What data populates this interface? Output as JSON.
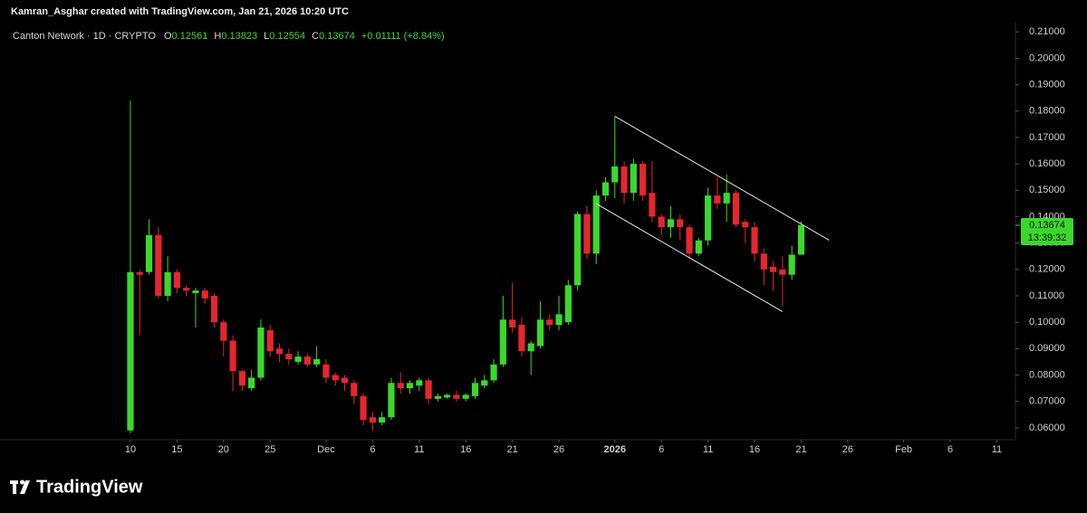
{
  "header": {
    "credit": "Kamran_Asghar created with TradingView.com, Jan 21, 2026 10:20 UTC",
    "symbol": "Canton Network · 1D · CRYPTO",
    "fields": [
      {
        "key": "O",
        "text": "0.12561"
      },
      {
        "key": "H",
        "text": "0.13823"
      },
      {
        "key": "L",
        "text": "0.12554"
      },
      {
        "key": "C",
        "text": "0.13674"
      }
    ],
    "change": "+0.01111 (+8.84%)"
  },
  "chart_data": {
    "type": "candlestick",
    "up_color": "#3bd82c",
    "down_color": "#e5262e",
    "x": [
      "2025-11-10",
      "2025-11-11",
      "2025-11-12",
      "2025-11-13",
      "2025-11-14",
      "2025-11-15",
      "2025-11-16",
      "2025-11-17",
      "2025-11-18",
      "2025-11-19",
      "2025-11-20",
      "2025-11-21",
      "2025-11-22",
      "2025-11-23",
      "2025-11-24",
      "2025-11-25",
      "2025-11-26",
      "2025-11-27",
      "2025-11-28",
      "2025-11-29",
      "2025-11-30",
      "2025-12-01",
      "2025-12-02",
      "2025-12-03",
      "2025-12-04",
      "2025-12-05",
      "2025-12-06",
      "2025-12-07",
      "2025-12-08",
      "2025-12-09",
      "2025-12-10",
      "2025-12-11",
      "2025-12-12",
      "2025-12-13",
      "2025-12-14",
      "2025-12-15",
      "2025-12-16",
      "2025-12-17",
      "2025-12-18",
      "2025-12-19",
      "2025-12-20",
      "2025-12-21",
      "2025-12-22",
      "2025-12-23",
      "2025-12-24",
      "2025-12-25",
      "2025-12-26",
      "2025-12-27",
      "2025-12-28",
      "2025-12-29",
      "2025-12-30",
      "2025-12-31",
      "2026-01-01",
      "2026-01-02",
      "2026-01-03",
      "2026-01-04",
      "2026-01-05",
      "2026-01-06",
      "2026-01-07",
      "2026-01-08",
      "2026-01-09",
      "2026-01-10",
      "2026-01-11",
      "2026-01-12",
      "2026-01-13",
      "2026-01-14",
      "2026-01-15",
      "2026-01-16",
      "2026-01-17",
      "2026-01-18",
      "2026-01-19",
      "2026-01-20",
      "2026-01-21"
    ],
    "open": [
      0.059,
      0.119,
      0.119,
      0.133,
      0.11,
      0.119,
      0.113,
      0.111,
      0.112,
      0.11,
      0.1,
      0.093,
      0.0815,
      0.075,
      0.079,
      0.097,
      0.09,
      0.088,
      0.085,
      0.087,
      0.084,
      0.084,
      0.08,
      0.079,
      0.077,
      0.072,
      0.064,
      0.062,
      0.064,
      0.077,
      0.075,
      0.076,
      0.078,
      0.071,
      0.0715,
      0.0725,
      0.071,
      0.072,
      0.076,
      0.078,
      0.084,
      0.101,
      0.099,
      0.089,
      0.091,
      0.101,
      0.099,
      0.1,
      0.114,
      0.141,
      0.126,
      0.148,
      0.153,
      0.159,
      0.149,
      0.16,
      0.149,
      0.14,
      0.136,
      0.139,
      0.136,
      0.126,
      0.131,
      0.148,
      0.145,
      0.149,
      0.138,
      0.136,
      0.126,
      0.121,
      0.12,
      0.118,
      0.12561
    ],
    "high": [
      0.184,
      0.12,
      0.139,
      0.136,
      0.125,
      0.12,
      0.114,
      0.113,
      0.113,
      0.111,
      0.101,
      0.095,
      0.082,
      0.082,
      0.101,
      0.099,
      0.092,
      0.09,
      0.089,
      0.088,
      0.091,
      0.086,
      0.081,
      0.08,
      0.078,
      0.073,
      0.066,
      0.066,
      0.079,
      0.081,
      0.078,
      0.079,
      0.079,
      0.073,
      0.073,
      0.074,
      0.073,
      0.079,
      0.08,
      0.086,
      0.11,
      0.115,
      0.102,
      0.093,
      0.108,
      0.103,
      0.11,
      0.116,
      0.142,
      0.144,
      0.15,
      0.155,
      0.178,
      0.161,
      0.162,
      0.161,
      0.161,
      0.141,
      0.144,
      0.141,
      0.137,
      0.132,
      0.151,
      0.155,
      0.156,
      0.15,
      0.139,
      0.138,
      0.128,
      0.123,
      0.125,
      0.129,
      0.13823
    ],
    "low": [
      0.058,
      0.095,
      0.118,
      0.109,
      0.108,
      0.111,
      0.11,
      0.098,
      0.107,
      0.098,
      0.087,
      0.074,
      0.074,
      0.074,
      0.078,
      0.087,
      0.085,
      0.084,
      0.084,
      0.083,
      0.083,
      0.077,
      0.076,
      0.074,
      0.069,
      0.061,
      0.059,
      0.061,
      0.063,
      0.073,
      0.073,
      0.074,
      0.069,
      0.07,
      0.071,
      0.07,
      0.07,
      0.071,
      0.075,
      0.077,
      0.083,
      0.096,
      0.087,
      0.08,
      0.09,
      0.097,
      0.097,
      0.099,
      0.112,
      0.124,
      0.122,
      0.146,
      0.147,
      0.145,
      0.146,
      0.146,
      0.138,
      0.133,
      0.132,
      0.131,
      0.124,
      0.125,
      0.129,
      0.143,
      0.138,
      0.136,
      0.13,
      0.123,
      0.114,
      0.112,
      0.106,
      0.116,
      0.12554
    ],
    "close": [
      0.119,
      0.118,
      0.133,
      0.11,
      0.119,
      0.113,
      0.112,
      0.112,
      0.109,
      0.1,
      0.093,
      0.0815,
      0.076,
      0.079,
      0.098,
      0.089,
      0.088,
      0.086,
      0.087,
      0.084,
      0.086,
      0.079,
      0.078,
      0.077,
      0.072,
      0.063,
      0.062,
      0.064,
      0.077,
      0.075,
      0.077,
      0.078,
      0.071,
      0.072,
      0.0725,
      0.071,
      0.0725,
      0.077,
      0.078,
      0.084,
      0.101,
      0.098,
      0.089,
      0.092,
      0.101,
      0.099,
      0.103,
      0.114,
      0.141,
      0.126,
      0.148,
      0.153,
      0.159,
      0.149,
      0.16,
      0.148,
      0.14,
      0.136,
      0.139,
      0.136,
      0.126,
      0.131,
      0.148,
      0.145,
      0.149,
      0.137,
      0.136,
      0.126,
      0.12,
      0.119,
      0.118,
      0.1256,
      0.13674
    ],
    "xlim": [
      "2025-10-27",
      "2026-02-13"
    ],
    "xticks": [
      {
        "value": "2025-11-10",
        "label": "10"
      },
      {
        "value": "2025-11-15",
        "label": "15"
      },
      {
        "value": "2025-11-20",
        "label": "20"
      },
      {
        "value": "2025-11-25",
        "label": "25"
      },
      {
        "value": "2025-12-01",
        "label": "Dec"
      },
      {
        "value": "2025-12-06",
        "label": "6"
      },
      {
        "value": "2025-12-11",
        "label": "11"
      },
      {
        "value": "2025-12-16",
        "label": "16"
      },
      {
        "value": "2025-12-21",
        "label": "21"
      },
      {
        "value": "2025-12-26",
        "label": "26"
      },
      {
        "value": "2026-01-01",
        "label": "2026"
      },
      {
        "value": "2026-01-06",
        "label": "6"
      },
      {
        "value": "2026-01-11",
        "label": "11"
      },
      {
        "value": "2026-01-16",
        "label": "16"
      },
      {
        "value": "2026-01-21",
        "label": "21"
      },
      {
        "value": "2026-01-26",
        "label": "26"
      },
      {
        "value": "2026-02-01",
        "label": "Feb"
      },
      {
        "value": "2026-02-06",
        "label": "6"
      },
      {
        "value": "2026-02-11",
        "label": "11"
      }
    ],
    "ylim": [
      0.0555,
      0.2135
    ],
    "yticks": [
      {
        "value": 0.06,
        "label": "0.06000"
      },
      {
        "value": 0.07,
        "label": "0.07000"
      },
      {
        "value": 0.08,
        "label": "0.08000"
      },
      {
        "value": 0.09,
        "label": "0.09000"
      },
      {
        "value": 0.1,
        "label": "0.10000"
      },
      {
        "value": 0.11,
        "label": "0.11000"
      },
      {
        "value": 0.12,
        "label": "0.12000"
      },
      {
        "value": 0.13,
        "label": "0.13000"
      },
      {
        "value": 0.14,
        "label": "0.14000"
      },
      {
        "value": 0.15,
        "label": "0.15000"
      },
      {
        "value": 0.16,
        "label": "0.16000"
      },
      {
        "value": 0.17,
        "label": "0.17000"
      },
      {
        "value": 0.18,
        "label": "0.18000"
      },
      {
        "value": 0.19,
        "label": "0.19000"
      },
      {
        "value": 0.2,
        "label": "0.20000"
      },
      {
        "value": 0.21,
        "label": "0.21000"
      }
    ],
    "grid": false,
    "trendlines": [
      {
        "x": [
          "2026-01-01",
          "2026-01-24"
        ],
        "y": [
          0.178,
          0.1311
        ],
        "color": "#e8e8e8"
      },
      {
        "x": [
          "2025-12-30",
          "2026-01-19"
        ],
        "y": [
          0.1449,
          0.104
        ],
        "color": "#e8e8e8"
      }
    ],
    "last_price": {
      "value_label": "0.13674",
      "countdown": "13:39:32",
      "color": "#3bd82c"
    }
  },
  "footer": {
    "brand": "TradingView"
  }
}
